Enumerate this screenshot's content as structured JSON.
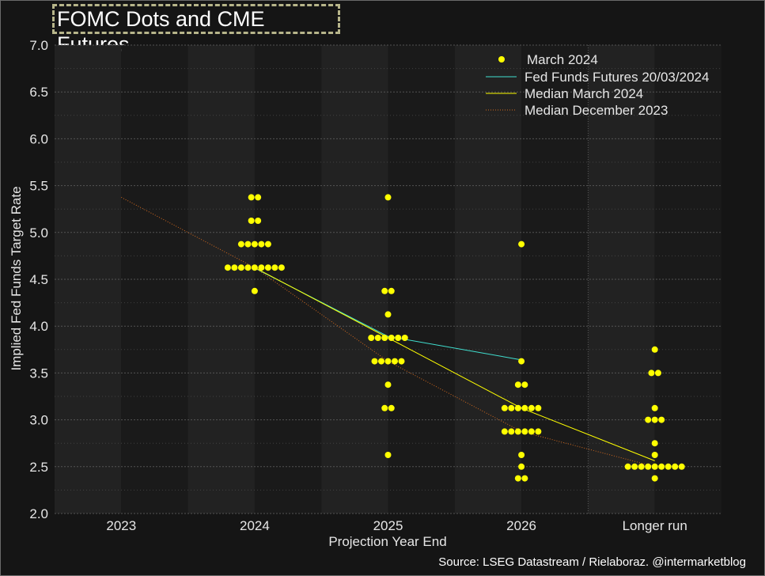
{
  "header": {
    "title": "FOMC Dots and CME Futures"
  },
  "footer": {
    "source": "Source: LSEG Datastream / Rielaboraz. @intermarketblog"
  },
  "colors": {
    "background": "#151515",
    "band_dark": "#1a1a1a",
    "band_light": "#222222",
    "grid": "#5a5a5a",
    "dots": "#ffff00",
    "futures": "#40e0d0",
    "median_march": "#ffff00",
    "median_december": "#d2691e"
  },
  "chart_data": {
    "type": "scatter",
    "xlabel": "Projection Year End",
    "ylabel": "Implied Fed Funds Target Rate",
    "categories": [
      "2023",
      "2024",
      "2025",
      "2026",
      "Longer run"
    ],
    "ylim": [
      2.0,
      7.0
    ],
    "yticks": [
      "2.0",
      "2.5",
      "3.0",
      "3.5",
      "4.0",
      "4.5",
      "5.0",
      "5.5",
      "6.0",
      "6.5",
      "7.0"
    ],
    "grid": true,
    "legend_position": "top-right",
    "dots": {
      "name": "March 2024",
      "points": [
        {
          "category": "2024",
          "value": 5.375,
          "count": 2
        },
        {
          "category": "2024",
          "value": 5.125,
          "count": 2
        },
        {
          "category": "2024",
          "value": 4.875,
          "count": 5
        },
        {
          "category": "2024",
          "value": 4.625,
          "count": 9
        },
        {
          "category": "2024",
          "value": 4.375,
          "count": 1
        },
        {
          "category": "2025",
          "value": 5.375,
          "count": 1
        },
        {
          "category": "2025",
          "value": 4.375,
          "count": 2
        },
        {
          "category": "2025",
          "value": 4.125,
          "count": 1
        },
        {
          "category": "2025",
          "value": 3.875,
          "count": 6
        },
        {
          "category": "2025",
          "value": 3.625,
          "count": 5
        },
        {
          "category": "2025",
          "value": 3.375,
          "count": 1
        },
        {
          "category": "2025",
          "value": 3.125,
          "count": 2
        },
        {
          "category": "2025",
          "value": 2.625,
          "count": 1
        },
        {
          "category": "2026",
          "value": 4.875,
          "count": 1
        },
        {
          "category": "2026",
          "value": 3.625,
          "count": 1
        },
        {
          "category": "2026",
          "value": 3.375,
          "count": 2
        },
        {
          "category": "2026",
          "value": 3.125,
          "count": 6
        },
        {
          "category": "2026",
          "value": 2.875,
          "count": 6
        },
        {
          "category": "2026",
          "value": 2.625,
          "count": 1
        },
        {
          "category": "2026",
          "value": 2.5,
          "count": 1
        },
        {
          "category": "2026",
          "value": 2.375,
          "count": 2
        },
        {
          "category": "Longer run",
          "value": 3.75,
          "count": 1
        },
        {
          "category": "Longer run",
          "value": 3.5,
          "count": 2
        },
        {
          "category": "Longer run",
          "value": 3.125,
          "count": 1
        },
        {
          "category": "Longer run",
          "value": 3.0,
          "count": 3
        },
        {
          "category": "Longer run",
          "value": 2.75,
          "count": 1
        },
        {
          "category": "Longer run",
          "value": 2.625,
          "count": 1
        },
        {
          "category": "Longer run",
          "value": 2.5,
          "count": 9
        },
        {
          "category": "Longer run",
          "value": 2.375,
          "count": 1
        }
      ]
    },
    "series": [
      {
        "name": "Fed Funds Futures 20/03/2024",
        "style": "solid",
        "points": [
          {
            "category": "2024",
            "value": 4.62
          },
          {
            "category": "2025",
            "value": 3.89
          },
          {
            "category": "2026",
            "value": 3.64
          }
        ]
      },
      {
        "name": "Median March 2024",
        "style": "solid",
        "points": [
          {
            "category": "2024",
            "value": 4.625
          },
          {
            "category": "2025",
            "value": 3.875
          },
          {
            "category": "2026",
            "value": 3.125
          },
          {
            "category": "Longer run",
            "value": 2.5625
          }
        ]
      },
      {
        "name": "Median December 2023",
        "style": "dotted",
        "points": [
          {
            "category": "2023",
            "value": 5.375
          },
          {
            "category": "2024",
            "value": 4.625
          },
          {
            "category": "2025",
            "value": 3.625
          },
          {
            "category": "2026",
            "value": 2.875
          },
          {
            "category": "Longer run",
            "value": 2.5
          }
        ]
      }
    ]
  }
}
